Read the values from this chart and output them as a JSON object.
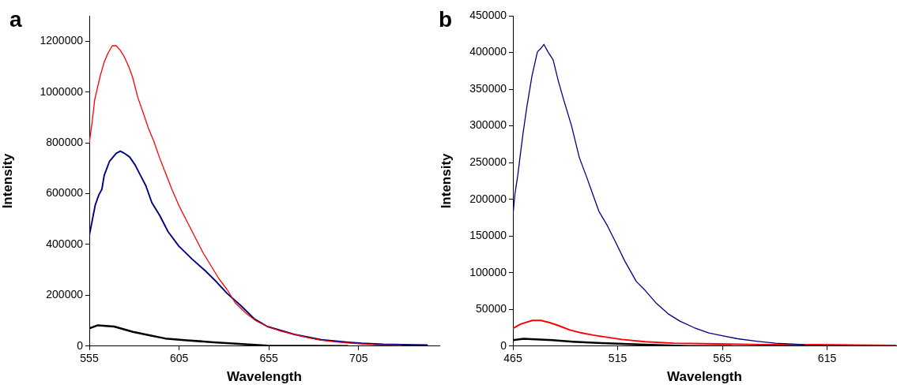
{
  "chart_data": [
    {
      "type": "line",
      "title": "a",
      "xlabel": "Wavelength",
      "ylabel": "Intensity",
      "xlim": [
        555,
        750
      ],
      "xticks": [
        555,
        605,
        655,
        705
      ],
      "ylim": [
        0,
        1300000
      ],
      "yticks": [
        0,
        200000,
        400000,
        600000,
        800000,
        1000000,
        1200000
      ],
      "grid": false,
      "marker": "none",
      "line_style": "solid",
      "series": [
        {
          "color": "#ff0000",
          "x": [
            555,
            556.5,
            558,
            561,
            563.3,
            565.5,
            567.8,
            570,
            572.3,
            574.5,
            576.8,
            579,
            582,
            585,
            588,
            591,
            594,
            598.5,
            601,
            604.8,
            609.3,
            613.8,
            618.3,
            622.8,
            627.3,
            631.8,
            636.3,
            642.3,
            648.2,
            654.2,
            661.7,
            669.2,
            676.7,
            684.2,
            691.7,
            699.2,
            706.7,
            714.2,
            729.2
          ],
          "values": [
            800000,
            877000,
            969000,
            1061000,
            1118000,
            1154000,
            1182000,
            1182000,
            1164000,
            1138000,
            1103000,
            1061000,
            979000,
            918000,
            856000,
            805000,
            744000,
            662000,
            617000,
            555000,
            492000,
            430000,
            368000,
            316000,
            264000,
            222000,
            170000,
            129000,
            98000,
            77000,
            59000,
            46000,
            33000,
            23000,
            17000,
            12000,
            8000,
            5000,
            3000
          ]
        },
        {
          "color": "#000080",
          "x": [
            555,
            558.3,
            560.3,
            562,
            563.3,
            566.3,
            570,
            572.3,
            574.5,
            577.5,
            580.5,
            583.5,
            586.5,
            589.8,
            594.3,
            598.8,
            604.8,
            612.3,
            619.8,
            625.8,
            631.8,
            639.3,
            646.8,
            654.2,
            669.2,
            684.2,
            699.2,
            706.7,
            718.8,
            743.5
          ],
          "values": [
            435000,
            555000,
            595000,
            617000,
            672000,
            728000,
            759000,
            767000,
            759000,
            744000,
            713000,
            672000,
            631000,
            565000,
            513000,
            451000,
            394000,
            342000,
            295000,
            253000,
            207000,
            160000,
            108000,
            77000,
            46000,
            25000,
            15000,
            11000,
            7000,
            4000
          ]
        },
        {
          "color": "#000000",
          "x": [
            555,
            559.8,
            568.8,
            579.3,
            588.3,
            597.3,
            609.3,
            624.3,
            643.8,
            654.2,
            676.7,
            699.2
          ],
          "values": [
            70000,
            82000,
            77000,
            56000,
            43000,
            30000,
            23000,
            15000,
            6000,
            2000,
            1000,
            0
          ]
        }
      ]
    },
    {
      "type": "line",
      "title": "b",
      "xlabel": "Wavelength",
      "ylabel": "Intensity",
      "xlim": [
        465,
        648
      ],
      "xticks": [
        465,
        515,
        565,
        615
      ],
      "ylim": [
        0,
        450000
      ],
      "yticks": [
        0,
        50000,
        100000,
        150000,
        200000,
        250000,
        300000,
        350000,
        400000,
        450000
      ],
      "grid": false,
      "marker": "none",
      "line_style": "solid",
      "series": [
        {
          "color": "#000080",
          "x": [
            465,
            466,
            467.3,
            468.5,
            469.8,
            471.6,
            474.1,
            476.7,
            478.5,
            479.8,
            481.7,
            484.2,
            486.7,
            489.2,
            493,
            496.7,
            500.5,
            503,
            506,
            510.1,
            514.3,
            518.4,
            523.9,
            528.1,
            533.6,
            539.1,
            544.7,
            551.6,
            558.5,
            565.4,
            572.3,
            580.6,
            590.3,
            604.1
          ],
          "values": [
            178000,
            208000,
            232000,
            260000,
            289000,
            325000,
            368000,
            401000,
            406000,
            411000,
            401000,
            390000,
            361000,
            336000,
            300000,
            257000,
            228000,
            208000,
            184000,
            164000,
            140000,
            116000,
            88000,
            76000,
            58000,
            44000,
            34000,
            25000,
            18000,
            14000,
            10000,
            7000,
            4000,
            2000
          ]
        },
        {
          "color": "#ff0000",
          "x": [
            465,
            468.7,
            474.3,
            478.4,
            482.5,
            486.7,
            492.2,
            497.7,
            503.3,
            510.1,
            517,
            528.1,
            541.9,
            562.6,
            583.4,
            611,
            648
          ],
          "values": [
            24000,
            30000,
            35000,
            35000,
            32000,
            28000,
            22000,
            18000,
            15000,
            12000,
            9000,
            6000,
            4000,
            3000,
            2000,
            2000,
            1000
          ]
        },
        {
          "color": "#000000",
          "x": [
            465,
            470.1,
            483.9,
            493.6,
            507.4,
            528.1,
            548.8,
            569.6
          ],
          "values": [
            8000,
            10000,
            8000,
            6000,
            4000,
            2000,
            0,
            0
          ]
        }
      ]
    }
  ]
}
